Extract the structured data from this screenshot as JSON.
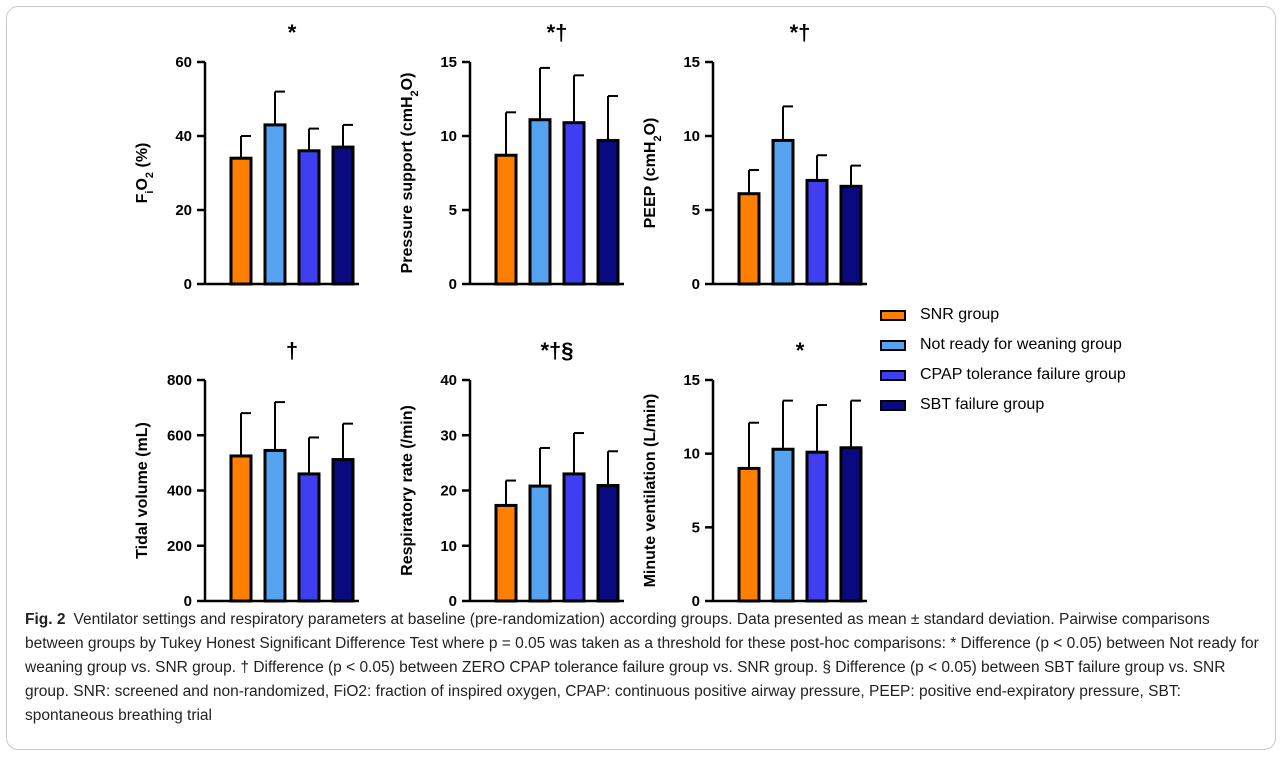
{
  "legend": [
    {
      "label": "SNR group",
      "color": "#ff7f00"
    },
    {
      "label": "Not ready for weaning group",
      "color": "#55a2f0"
    },
    {
      "label": "CPAP tolerance failure group",
      "color": "#3f3ef0"
    },
    {
      "label": "SBT failure group",
      "color": "#0a0a80"
    }
  ],
  "chart_data": [
    {
      "type": "bar",
      "title": "*",
      "ylabel": "FiO2 (%)",
      "ylim": [
        0,
        60
      ],
      "yticks": [
        0,
        20,
        40,
        60
      ],
      "categories": [
        "SNR group",
        "Not ready for weaning group",
        "CPAP tolerance failure group",
        "SBT failure group"
      ],
      "values": [
        34,
        43,
        36,
        37
      ],
      "error": [
        6,
        9,
        6,
        6
      ]
    },
    {
      "type": "bar",
      "title": "*†",
      "ylabel": "Pressure support (cmH2O)",
      "ylim": [
        0,
        15
      ],
      "yticks": [
        0,
        5,
        10,
        15
      ],
      "categories": [
        "SNR group",
        "Not ready for weaning group",
        "CPAP tolerance failure group",
        "SBT failure group"
      ],
      "values": [
        8.7,
        11.1,
        10.9,
        9.7
      ],
      "error": [
        2.9,
        3.5,
        3.2,
        3.0
      ]
    },
    {
      "type": "bar",
      "title": "*†",
      "ylabel": "PEEP (cmH2O)",
      "ylim": [
        0,
        15
      ],
      "yticks": [
        0,
        5,
        10,
        15
      ],
      "categories": [
        "SNR group",
        "Not ready for weaning group",
        "CPAP tolerance failure group",
        "SBT failure group"
      ],
      "values": [
        6.1,
        9.7,
        7.0,
        6.6
      ],
      "error": [
        1.6,
        2.3,
        1.7,
        1.4
      ]
    },
    {
      "type": "bar",
      "title": "†",
      "ylabel": "Tidal volume (mL)",
      "ylim": [
        0,
        800
      ],
      "yticks": [
        0,
        200,
        400,
        600,
        800
      ],
      "categories": [
        "SNR group",
        "Not ready for weaning group",
        "CPAP tolerance failure group",
        "SBT failure group"
      ],
      "values": [
        525,
        545,
        460,
        512
      ],
      "error": [
        155,
        175,
        132,
        130
      ]
    },
    {
      "type": "bar",
      "title": "*†§",
      "ylabel": "Respiratory rate (/min)",
      "ylim": [
        0,
        40
      ],
      "yticks": [
        0,
        10,
        20,
        30,
        40
      ],
      "categories": [
        "SNR group",
        "Not ready for weaning group",
        "CPAP tolerance failure group",
        "SBT failure group"
      ],
      "values": [
        17.3,
        20.8,
        23.0,
        20.9
      ],
      "error": [
        4.5,
        6.9,
        7.4,
        6.2
      ]
    },
    {
      "type": "bar",
      "title": "*",
      "ylabel": "Minute ventilation (L/min)",
      "ylim": [
        0,
        15
      ],
      "yticks": [
        0,
        5,
        10,
        15
      ],
      "categories": [
        "SNR group",
        "Not ready for weaning group",
        "CPAP tolerance failure group",
        "SBT failure group"
      ],
      "values": [
        9.0,
        10.3,
        10.1,
        10.4
      ],
      "error": [
        3.1,
        3.3,
        3.2,
        3.2
      ]
    }
  ],
  "caption": {
    "fig_label": "Fig. 2",
    "text": "Ventilator settings and respiratory parameters at baseline (pre-randomization) according groups. Data presented as mean ± standard deviation. Pairwise comparisons between groups by Tukey Honest Significant Difference Test where p = 0.05 was taken as a threshold for these post-hoc comparisons: * Difference (p < 0.05) between Not ready for weaning group vs. SNR group. † Difference (p < 0.05) between ZERO CPAP tolerance failure group vs. SNR group. § Difference (p < 0.05) between SBT failure group vs. SNR group. SNR: screened and non-randomized, FiO2: fraction of inspired oxygen, CPAP: continuous positive airway pressure, PEEP: positive end-expiratory pressure, SBT: spontaneous breathing trial"
  }
}
